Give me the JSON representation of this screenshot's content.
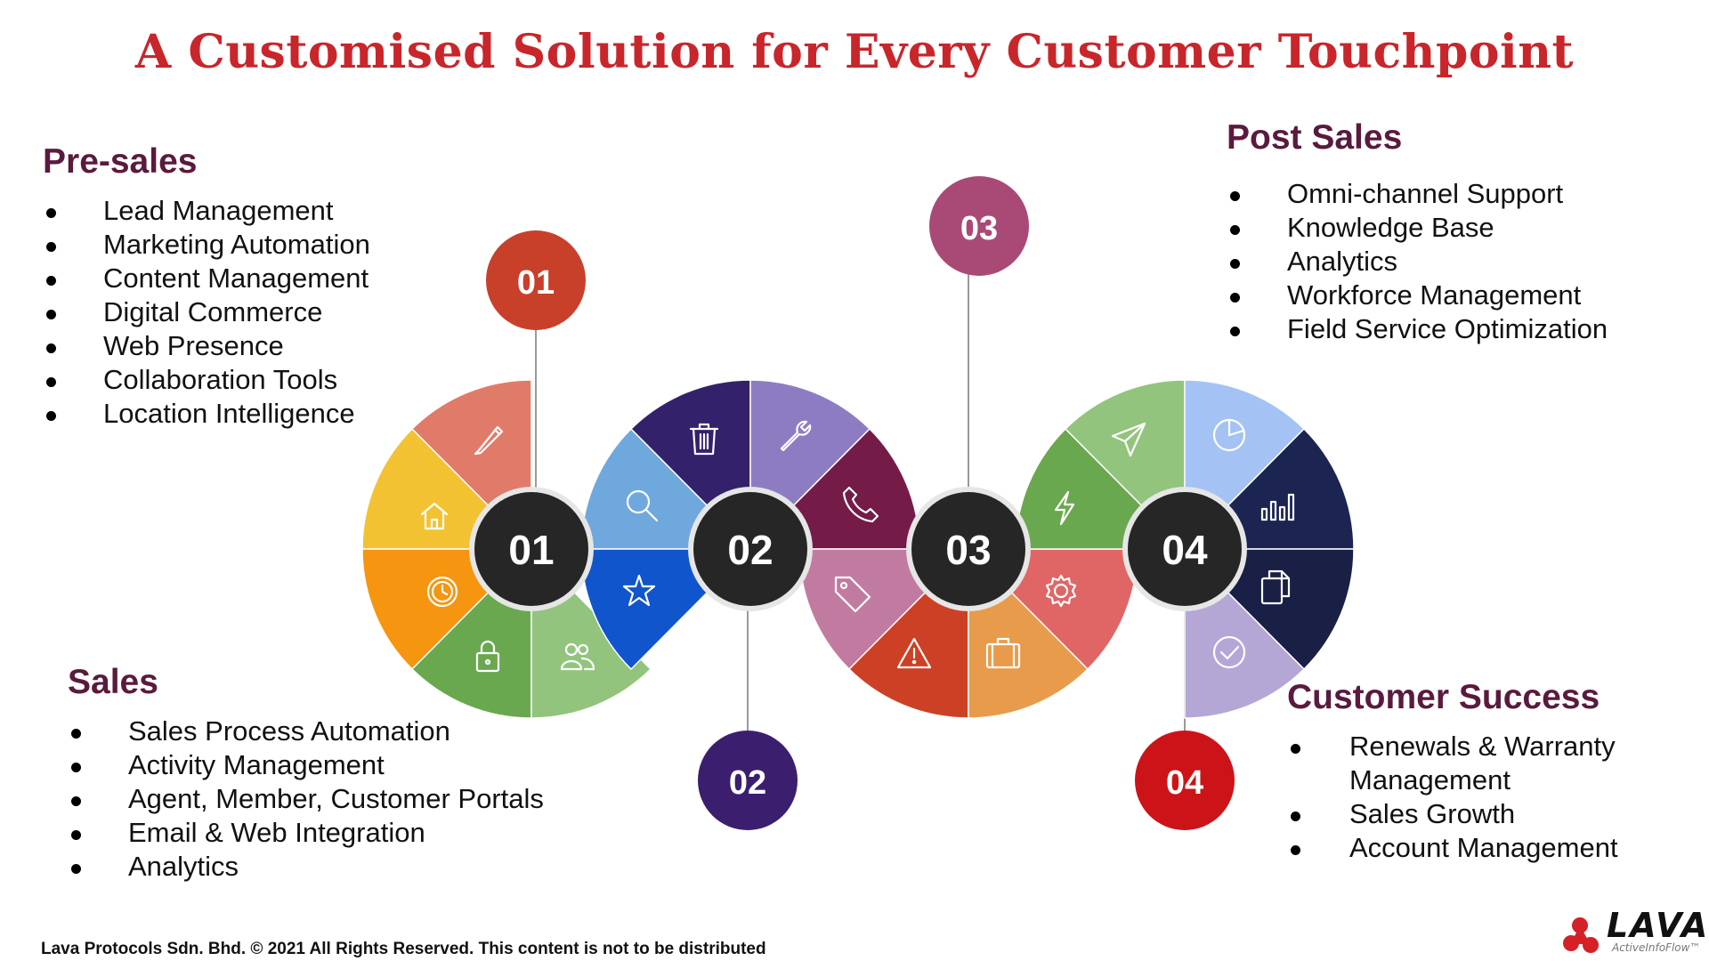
{
  "title": "A Customised Solution for Every Customer Touchpoint",
  "presales": {
    "heading": "Pre-sales",
    "items": [
      "Lead Management",
      "Marketing Automation",
      "Content Management",
      "Digital Commerce",
      "Web Presence",
      "Collaboration Tools",
      "Location Intelligence"
    ]
  },
  "sales": {
    "heading": "Sales",
    "items": [
      "Sales Process Automation",
      "Activity Management",
      "Agent, Member, Customer Portals",
      "Email & Web Integration",
      "Analytics"
    ]
  },
  "postsales": {
    "heading": "Post Sales",
    "items": [
      "Omni-channel Support",
      "Knowledge Base",
      "Analytics",
      "Workforce Management",
      "Field Service Optimization"
    ]
  },
  "success": {
    "heading": "Customer Success",
    "items": [
      "Renewals & Warranty Management",
      "Sales Growth",
      "Account Management"
    ]
  },
  "stages": [
    {
      "label": "01",
      "badge": "01",
      "badge_color": "#c8402a"
    },
    {
      "label": "02",
      "badge": "02",
      "badge_color": "#3b1f6e"
    },
    {
      "label": "03",
      "badge": "03",
      "badge_color": "#a94a76"
    },
    {
      "label": "04",
      "badge": "04",
      "badge_color": "#cc1418"
    }
  ],
  "segment_colors": {
    "stage1": [
      "#f2c232",
      "#e07b6a",
      "#f6950f",
      "#6aa84f",
      "#93c47d"
    ],
    "stage2": [
      "#6fa8dc",
      "#34216b",
      "#8e7cc3",
      "#741b47",
      "#1155cc"
    ],
    "stage3": [
      "#c27ba0",
      "#cc4125",
      "#e06666",
      "#e69138"
    ],
    "stage4": [
      "#6aa84f",
      "#93c47d",
      "#a4c2f4",
      "#1c2452",
      "#b4a7d6"
    ]
  },
  "icons": {
    "stage1": [
      "home-icon",
      "pencil-icon",
      "clock-icon",
      "lock-icon",
      "users-icon"
    ],
    "stage2": [
      "search-icon",
      "trash-icon",
      "wrench-icon",
      "phone-icon",
      "star-icon"
    ],
    "stage3": [
      "tag-icon",
      "warning-icon",
      "briefcase-icon",
      "gear-icon"
    ],
    "stage4": [
      "lightning-icon",
      "send-icon",
      "pie-chart-icon",
      "bar-chart-icon",
      "copy-icon",
      "check-icon"
    ]
  },
  "footer": "Lava Protocols Sdn. Bhd. © 2021 All Rights Reserved. This content is not to be distributed",
  "logo": {
    "word": "LAVA",
    "tagline": "ActiveInfoFlow™",
    "color": "#d42027"
  }
}
